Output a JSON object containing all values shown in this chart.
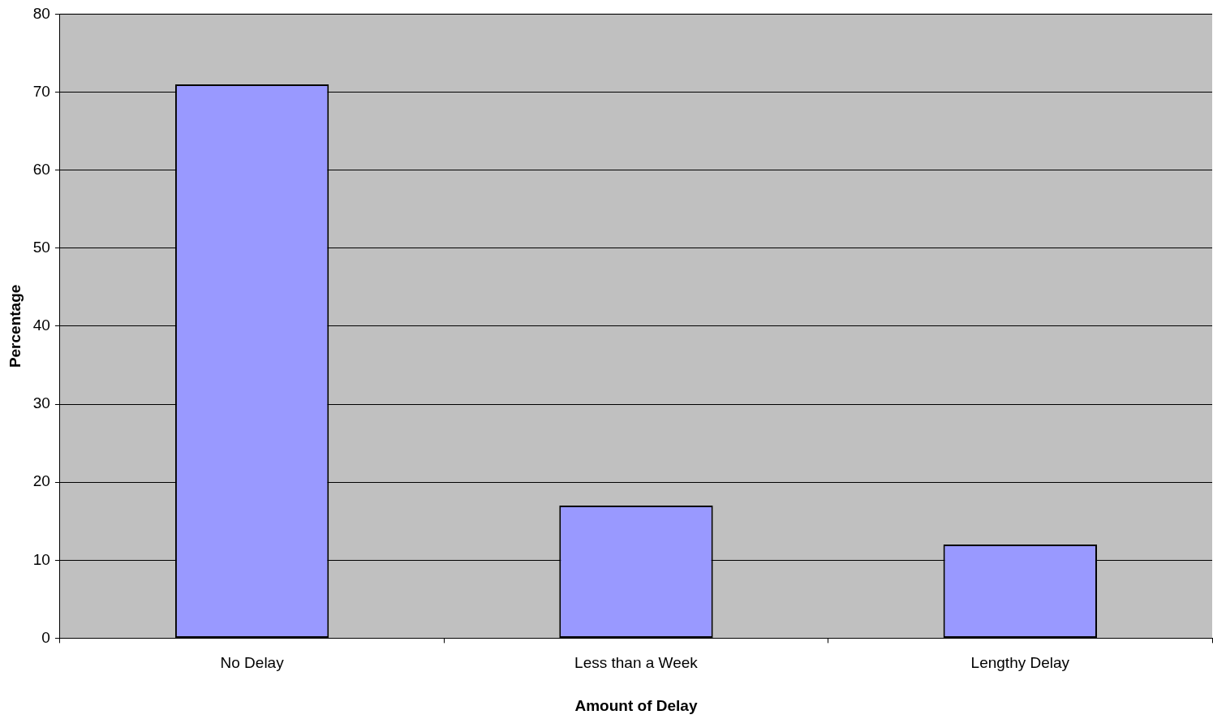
{
  "chart_data": {
    "type": "bar",
    "xlabel": "Amount of Delay",
    "ylabel": "Percentage",
    "categories": [
      "No Delay",
      "Less than a Week",
      "Lengthy Delay"
    ],
    "values": [
      71,
      17,
      12
    ],
    "color": "#9999ff",
    "ylim": [
      0,
      80
    ],
    "yticks": [
      0,
      10,
      20,
      30,
      40,
      50,
      60,
      70,
      80
    ],
    "grid": "y",
    "legend": false
  }
}
